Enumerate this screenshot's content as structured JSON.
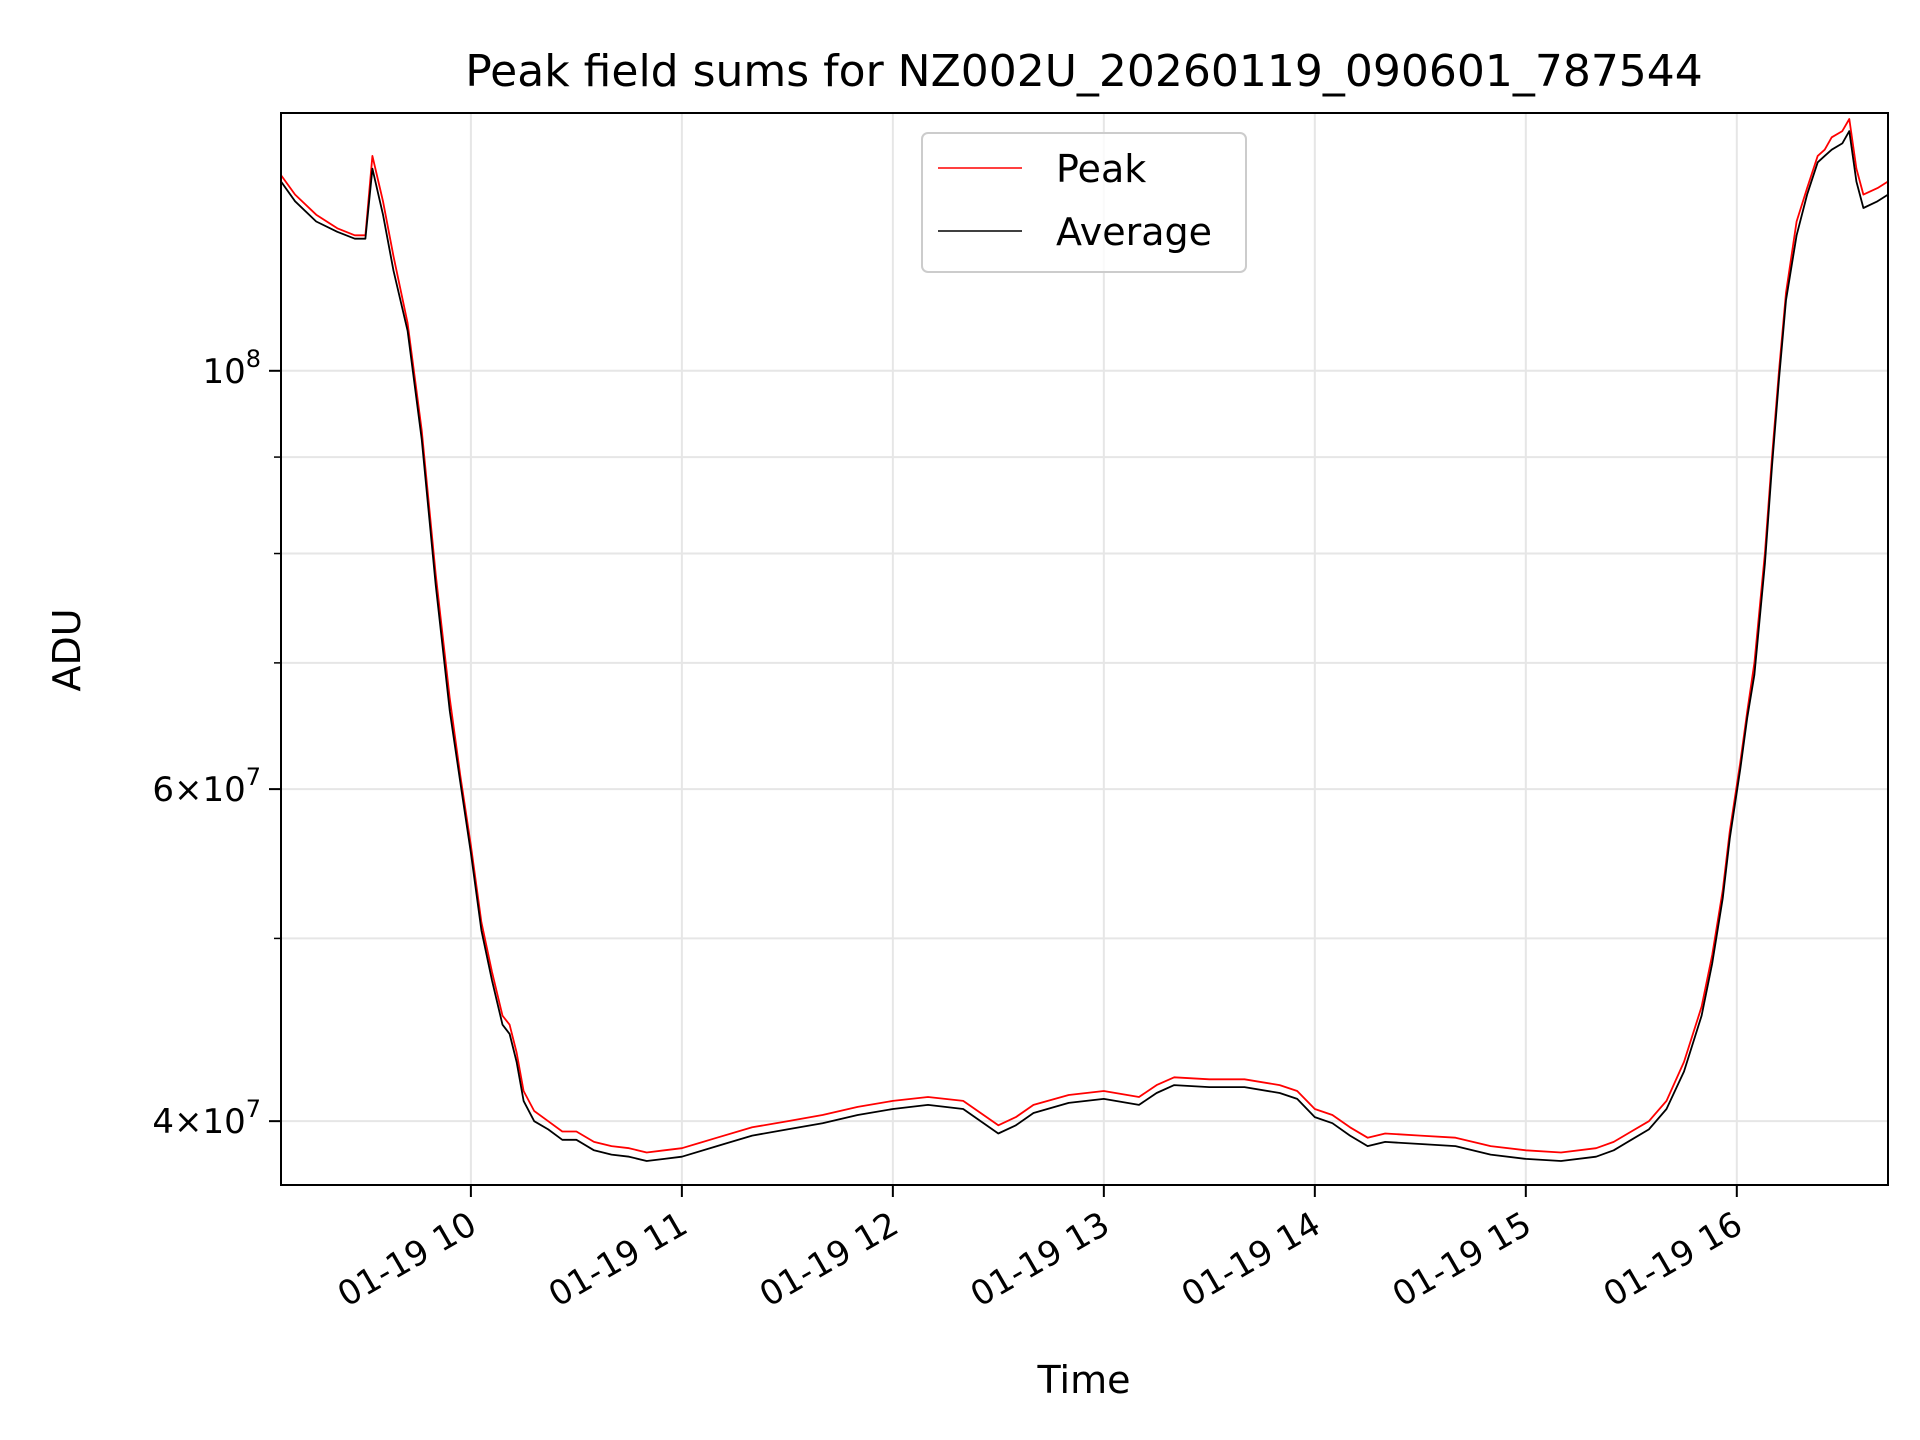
{
  "chart_data": {
    "type": "line",
    "title": "Peak field sums for NZ002U_20260119_090601_787544",
    "xlabel": "Time",
    "ylabel": "ADU",
    "yscale": "log",
    "grid": true,
    "legend_placement": "upper center",
    "xlim": [
      "2026-01-19 09:06",
      "2026-01-19 16:43"
    ],
    "ylim": [
      37000000,
      137000000
    ],
    "x_ticks": [
      {
        "value": "2026-01-19 10:00",
        "label": "01-19 10"
      },
      {
        "value": "2026-01-19 11:00",
        "label": "01-19 11"
      },
      {
        "value": "2026-01-19 12:00",
        "label": "01-19 12"
      },
      {
        "value": "2026-01-19 13:00",
        "label": "01-19 13"
      },
      {
        "value": "2026-01-19 14:00",
        "label": "01-19 14"
      },
      {
        "value": "2026-01-19 15:00",
        "label": "01-19 15"
      },
      {
        "value": "2026-01-19 16:00",
        "label": "01-19 16"
      }
    ],
    "y_major_ticks": [
      {
        "value": 40000000,
        "mant": "4",
        "exp": "7"
      },
      {
        "value": 60000000,
        "mant": "6",
        "exp": "7"
      },
      {
        "value": 100000000,
        "mant": "",
        "exp": "8"
      }
    ],
    "y_minor_ticks": [
      50000000,
      70000000,
      80000000,
      90000000
    ],
    "colors": {
      "peak": "#ff0000",
      "average": "#000000",
      "grid": "#e6e6e6"
    },
    "series": [
      {
        "name": "Peak",
        "color": "#ff0000",
        "x": [
          "2026-01-19 09:06",
          "2026-01-19 09:10",
          "2026-01-19 09:16",
          "2026-01-19 09:22",
          "2026-01-19 09:27",
          "2026-01-19 09:30",
          "2026-01-19 09:32",
          "2026-01-19 09:35",
          "2026-01-19 09:38",
          "2026-01-19 09:42",
          "2026-01-19 09:46",
          "2026-01-19 09:50",
          "2026-01-19 09:54",
          "2026-01-19 09:57",
          "2026-01-19 10:00",
          "2026-01-19 10:03",
          "2026-01-19 10:06",
          "2026-01-19 10:09",
          "2026-01-19 10:11",
          "2026-01-19 10:13",
          "2026-01-19 10:15",
          "2026-01-19 10:18",
          "2026-01-19 10:22",
          "2026-01-19 10:26",
          "2026-01-19 10:30",
          "2026-01-19 10:35",
          "2026-01-19 10:40",
          "2026-01-19 10:45",
          "2026-01-19 10:50",
          "2026-01-19 10:55",
          "2026-01-19 11:00",
          "2026-01-19 11:10",
          "2026-01-19 11:20",
          "2026-01-19 11:30",
          "2026-01-19 11:40",
          "2026-01-19 11:50",
          "2026-01-19 12:00",
          "2026-01-19 12:10",
          "2026-01-19 12:20",
          "2026-01-19 12:30",
          "2026-01-19 12:35",
          "2026-01-19 12:40",
          "2026-01-19 12:50",
          "2026-01-19 13:00",
          "2026-01-19 13:10",
          "2026-01-19 13:15",
          "2026-01-19 13:20",
          "2026-01-19 13:30",
          "2026-01-19 13:40",
          "2026-01-19 13:50",
          "2026-01-19 13:55",
          "2026-01-19 14:00",
          "2026-01-19 14:05",
          "2026-01-19 14:10",
          "2026-01-19 14:15",
          "2026-01-19 14:20",
          "2026-01-19 14:30",
          "2026-01-19 14:40",
          "2026-01-19 14:50",
          "2026-01-19 15:00",
          "2026-01-19 15:10",
          "2026-01-19 15:20",
          "2026-01-19 15:25",
          "2026-01-19 15:30",
          "2026-01-19 15:35",
          "2026-01-19 15:40",
          "2026-01-19 15:45",
          "2026-01-19 15:50",
          "2026-01-19 15:53",
          "2026-01-19 15:56",
          "2026-01-19 15:58",
          "2026-01-19 16:01",
          "2026-01-19 16:03",
          "2026-01-19 16:05",
          "2026-01-19 16:08",
          "2026-01-19 16:10",
          "2026-01-19 16:12",
          "2026-01-19 16:14",
          "2026-01-19 16:17",
          "2026-01-19 16:20",
          "2026-01-19 16:23",
          "2026-01-19 16:25",
          "2026-01-19 16:27",
          "2026-01-19 16:30",
          "2026-01-19 16:32",
          "2026-01-19 16:34",
          "2026-01-19 16:36",
          "2026-01-19 16:40",
          "2026-01-19 16:43"
        ],
        "values": [
          127000000,
          124000000,
          121000000,
          119000000,
          118000000,
          118000000,
          130000000,
          123000000,
          115000000,
          106000000,
          93000000,
          78000000,
          67000000,
          61000000,
          56000000,
          51000000,
          48000000,
          45500000,
          45000000,
          43500000,
          41500000,
          40500000,
          40000000,
          39500000,
          39500000,
          39000000,
          38800000,
          38700000,
          38500000,
          38600000,
          38700000,
          39200000,
          39700000,
          40000000,
          40300000,
          40700000,
          41000000,
          41200000,
          41000000,
          39800000,
          40200000,
          40800000,
          41300000,
          41500000,
          41200000,
          41800000,
          42200000,
          42100000,
          42100000,
          41800000,
          41500000,
          40600000,
          40300000,
          39700000,
          39200000,
          39400000,
          39300000,
          39200000,
          38800000,
          38600000,
          38500000,
          38700000,
          39000000,
          39500000,
          40000000,
          41000000,
          43000000,
          46000000,
          49000000,
          53000000,
          57000000,
          62000000,
          66000000,
          70000000,
          80000000,
          90000000,
          100000000,
          110000000,
          120000000,
          125000000,
          130000000,
          131000000,
          133000000,
          134000000,
          136000000,
          128000000,
          124000000,
          125000000,
          126000000
        ]
      },
      {
        "name": "Average",
        "color": "#000000",
        "x": [
          "2026-01-19 09:06",
          "2026-01-19 09:10",
          "2026-01-19 09:16",
          "2026-01-19 09:22",
          "2026-01-19 09:27",
          "2026-01-19 09:30",
          "2026-01-19 09:32",
          "2026-01-19 09:35",
          "2026-01-19 09:38",
          "2026-01-19 09:42",
          "2026-01-19 09:46",
          "2026-01-19 09:50",
          "2026-01-19 09:54",
          "2026-01-19 09:57",
          "2026-01-19 10:00",
          "2026-01-19 10:03",
          "2026-01-19 10:06",
          "2026-01-19 10:09",
          "2026-01-19 10:11",
          "2026-01-19 10:13",
          "2026-01-19 10:15",
          "2026-01-19 10:18",
          "2026-01-19 10:22",
          "2026-01-19 10:26",
          "2026-01-19 10:30",
          "2026-01-19 10:35",
          "2026-01-19 10:40",
          "2026-01-19 10:45",
          "2026-01-19 10:50",
          "2026-01-19 10:55",
          "2026-01-19 11:00",
          "2026-01-19 11:10",
          "2026-01-19 11:20",
          "2026-01-19 11:30",
          "2026-01-19 11:40",
          "2026-01-19 11:50",
          "2026-01-19 12:00",
          "2026-01-19 12:10",
          "2026-01-19 12:20",
          "2026-01-19 12:30",
          "2026-01-19 12:35",
          "2026-01-19 12:40",
          "2026-01-19 12:50",
          "2026-01-19 13:00",
          "2026-01-19 13:10",
          "2026-01-19 13:15",
          "2026-01-19 13:20",
          "2026-01-19 13:30",
          "2026-01-19 13:40",
          "2026-01-19 13:50",
          "2026-01-19 13:55",
          "2026-01-19 14:00",
          "2026-01-19 14:05",
          "2026-01-19 14:10",
          "2026-01-19 14:15",
          "2026-01-19 14:20",
          "2026-01-19 14:30",
          "2026-01-19 14:40",
          "2026-01-19 14:50",
          "2026-01-19 15:00",
          "2026-01-19 15:10",
          "2026-01-19 15:20",
          "2026-01-19 15:25",
          "2026-01-19 15:30",
          "2026-01-19 15:35",
          "2026-01-19 15:40",
          "2026-01-19 15:45",
          "2026-01-19 15:50",
          "2026-01-19 15:53",
          "2026-01-19 15:56",
          "2026-01-19 15:58",
          "2026-01-19 16:01",
          "2026-01-19 16:03",
          "2026-01-19 16:05",
          "2026-01-19 16:08",
          "2026-01-19 16:10",
          "2026-01-19 16:12",
          "2026-01-19 16:14",
          "2026-01-19 16:17",
          "2026-01-19 16:20",
          "2026-01-19 16:23",
          "2026-01-19 16:25",
          "2026-01-19 16:27",
          "2026-01-19 16:30",
          "2026-01-19 16:32",
          "2026-01-19 16:34",
          "2026-01-19 16:36",
          "2026-01-19 16:40",
          "2026-01-19 16:43"
        ],
        "values": [
          126000000,
          123000000,
          120000000,
          118500000,
          117500000,
          117500000,
          128000000,
          121000000,
          113000000,
          105000000,
          92000000,
          77000000,
          66000000,
          60500000,
          55500000,
          50500000,
          47500000,
          45000000,
          44500000,
          43000000,
          41000000,
          40000000,
          39600000,
          39100000,
          39100000,
          38600000,
          38400000,
          38300000,
          38100000,
          38200000,
          38300000,
          38800000,
          39300000,
          39600000,
          39900000,
          40300000,
          40600000,
          40800000,
          40600000,
          39400000,
          39800000,
          40400000,
          40900000,
          41100000,
          40800000,
          41400000,
          41800000,
          41700000,
          41700000,
          41400000,
          41100000,
          40200000,
          39900000,
          39300000,
          38800000,
          39000000,
          38900000,
          38800000,
          38400000,
          38200000,
          38100000,
          38300000,
          38600000,
          39100000,
          39600000,
          40600000,
          42500000,
          45500000,
          48500000,
          52500000,
          56500000,
          61500000,
          65500000,
          69000000,
          79000000,
          89000000,
          99000000,
          109000000,
          118000000,
          124000000,
          129000000,
          130000000,
          131000000,
          132000000,
          134000000,
          126000000,
          122000000,
          123000000,
          124000000
        ]
      }
    ]
  }
}
